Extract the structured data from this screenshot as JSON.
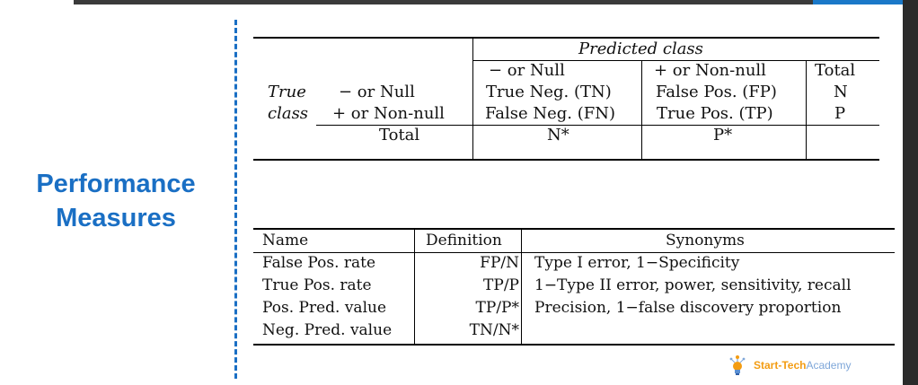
{
  "slide": {
    "title_line1": "Performance",
    "title_line2": "Measures"
  },
  "confusion_table": {
    "predicted_header": "Predicted class",
    "col_headers": [
      "− or Null",
      "+ or Non-null",
      "Total"
    ],
    "true_label_line1": "True",
    "true_label_line2": "class",
    "rows": [
      {
        "label": "− or Null",
        "cells": [
          "True Neg. (TN)",
          "False Pos. (FP)",
          "N"
        ]
      },
      {
        "label": "+ or Non-null",
        "cells": [
          "False Neg. (FN)",
          "True Pos. (TP)",
          "P"
        ]
      }
    ],
    "total_row": {
      "label": "Total",
      "cells": [
        "N*",
        "P*",
        ""
      ]
    }
  },
  "measures_table": {
    "headers": [
      "Name",
      "Definition",
      "Synonyms"
    ],
    "rows": [
      {
        "name": "False Pos. rate",
        "definition": "FP/N",
        "synonyms": "Type I error, 1−Specificity"
      },
      {
        "name": "True Pos. rate",
        "definition": "TP/P",
        "synonyms": "1−Type II error, power, sensitivity, recall"
      },
      {
        "name": "Pos. Pred. value",
        "definition": "TP/P*",
        "synonyms": "Precision, 1−false discovery proportion"
      },
      {
        "name": "Neg. Pred. value",
        "definition": "TN/N*",
        "synonyms": ""
      }
    ]
  },
  "logo": {
    "text_part1": "Start-Tech",
    "text_part2": "Academy",
    "icon": "lightbulb-person-icon"
  }
}
